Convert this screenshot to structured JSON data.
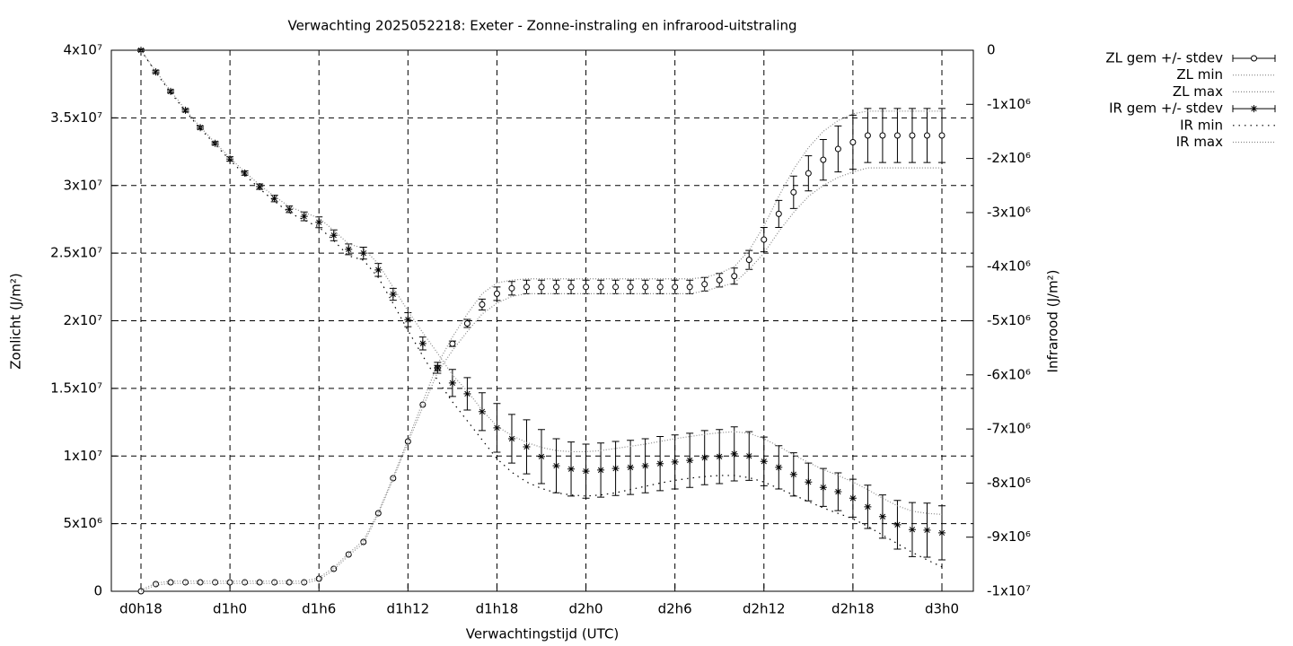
{
  "chart_data": {
    "type": "errorbar-line",
    "title": "Verwachting 2025052218: Exeter - Zonne-instraling en infrarood-uitstraling",
    "xlabel": "Verwachtingstijd (UTC)",
    "ylabel": "Zonlicht (J/m²)",
    "y2label": "Infrarood (J/m²)",
    "grid": true,
    "categories": [
      "d0h18",
      null,
      null,
      null,
      null,
      null,
      "d1h0",
      null,
      null,
      null,
      null,
      null,
      "d1h6",
      null,
      null,
      null,
      null,
      null,
      "d1h12",
      null,
      null,
      null,
      null,
      null,
      "d1h18",
      null,
      null,
      null,
      null,
      null,
      "d2h0",
      null,
      null,
      null,
      null,
      null,
      "d2h6",
      null,
      null,
      null,
      null,
      null,
      "d2h12",
      null,
      null,
      null,
      null,
      null,
      "d2h18",
      null,
      null,
      null,
      null,
      null,
      "d3h0"
    ],
    "ylim": [
      0,
      40000000.0
    ],
    "yticks": [
      0,
      {
        "value": 5000000.0,
        "label": "5x10⁶"
      },
      {
        "value": 10000000.0,
        "label": "1x10⁷"
      },
      {
        "value": 15000000.0,
        "label": "1.5x10⁷"
      },
      {
        "value": 20000000.0,
        "label": "2x10⁷"
      },
      {
        "value": 25000000.0,
        "label": "2.5x10⁷"
      },
      {
        "value": 30000000.0,
        "label": "3x10⁷"
      },
      {
        "value": 35000000.0,
        "label": "3.5x10⁷"
      },
      {
        "value": 40000000.0,
        "label": "4x10⁷"
      }
    ],
    "y2lim": [
      -10000000.0,
      0
    ],
    "y2ticks": [
      0,
      {
        "value": -1000000.0,
        "label": "-1x10⁶"
      },
      {
        "value": -2000000.0,
        "label": "-2x10⁶"
      },
      {
        "value": -3000000.0,
        "label": "-3x10⁶"
      },
      {
        "value": -4000000.0,
        "label": "-4x10⁶"
      },
      {
        "value": -5000000.0,
        "label": "-5x10⁶"
      },
      {
        "value": -6000000.0,
        "label": "-6x10⁶"
      },
      {
        "value": -7000000.0,
        "label": "-7x10⁶"
      },
      {
        "value": -8000000.0,
        "label": "-8x10⁶"
      },
      {
        "value": -9000000.0,
        "label": "-9x10⁶"
      },
      {
        "value": -10000000.0,
        "label": "-1x10⁷"
      }
    ],
    "series": [
      {
        "name": "ZL gem +/- stdev",
        "color": "#000000",
        "style": "errorbars",
        "marker": "circle",
        "values": [
          0,
          530000.0,
          660000.0,
          660000.0,
          660000.0,
          660000.0,
          660000.0,
          660000.0,
          660000.0,
          660000.0,
          660000.0,
          660000.0,
          930000.0,
          1660000.0,
          2720000.0,
          3650000.0,
          5770000.0,
          8360000.0,
          11080000.0,
          13800000.0,
          16500000.0,
          18300000.0,
          19800000.0,
          21200000.0,
          22000000.0,
          22400000.0,
          22500000.0,
          22500000.0,
          22500000.0,
          22500000.0,
          22500000.0,
          22500000.0,
          22500000.0,
          22500000.0,
          22500000.0,
          22500000.0,
          22500000.0,
          22500000.0,
          22700000.0,
          23000000.0,
          23300000.0,
          24500000.0,
          26000000.0,
          27900000.0,
          29500000.0,
          30900000.0,
          31900000.0,
          32700000.0,
          33200000.0,
          33700000.0,
          33700000.0,
          33700000.0,
          33700000.0,
          33700000.0,
          33700000.0
        ],
        "errors": [
          0,
          0,
          0,
          0,
          0,
          0,
          0,
          0,
          0,
          0,
          0,
          0,
          0,
          0,
          0,
          0,
          0,
          0,
          0,
          0,
          200000.0,
          200000.0,
          300000.0,
          400000.0,
          500000.0,
          500000.0,
          500000.0,
          500000.0,
          500000.0,
          500000.0,
          500000.0,
          500000.0,
          500000.0,
          500000.0,
          500000.0,
          500000.0,
          500000.0,
          500000.0,
          500000.0,
          500000.0,
          600000.0,
          700000.0,
          900000.0,
          1000000.0,
          1200000.0,
          1300000.0,
          1500000.0,
          1700000.0,
          2000000.0,
          2000000.0,
          2000000.0,
          2000000.0,
          2000000.0,
          2000000.0,
          2000000.0
        ]
      },
      {
        "name": "ZL min",
        "color": "#888888",
        "style": "dotted",
        "values": [
          0,
          450000.0,
          580000.0,
          580000.0,
          580000.0,
          580000.0,
          580000.0,
          580000.0,
          580000.0,
          580000.0,
          580000.0,
          580000.0,
          850000.0,
          1580000.0,
          2650000.0,
          3550000.0,
          5700000.0,
          8300000.0,
          11000000.0,
          13600000.0,
          16200000.0,
          17800000.0,
          19200000.0,
          20500000.0,
          21300000.0,
          21800000.0,
          22000000.0,
          22000000.0,
          22000000.0,
          22000000.0,
          22000000.0,
          22000000.0,
          22000000.0,
          22000000.0,
          22000000.0,
          22000000.0,
          22000000.0,
          22000000.0,
          22200000.0,
          22500000.0,
          22800000.0,
          23800000.0,
          25000000.0,
          26600000.0,
          28000000.0,
          29200000.0,
          30000000.0,
          30600000.0,
          31000000.0,
          31300000.0,
          31300000.0,
          31300000.0,
          31300000.0,
          31300000.0,
          31300000.0
        ]
      },
      {
        "name": "ZL max",
        "color": "#888888",
        "style": "dotted",
        "values": [
          100000.0,
          600000.0,
          750000.0,
          750000.0,
          750000.0,
          750000.0,
          750000.0,
          750000.0,
          750000.0,
          750000.0,
          750000.0,
          750000.0,
          1000000.0,
          1750000.0,
          2800000.0,
          3750000.0,
          5850000.0,
          8450000.0,
          11200000.0,
          14000000.0,
          16800000.0,
          18800000.0,
          20500000.0,
          22000000.0,
          22800000.0,
          23000000.0,
          23100000.0,
          23100000.0,
          23100000.0,
          23100000.0,
          23100000.0,
          23100000.0,
          23100000.0,
          23100000.0,
          23100000.0,
          23100000.0,
          23100000.0,
          23100000.0,
          23200000.0,
          23500000.0,
          24000000.0,
          25200000.0,
          27000000.0,
          29200000.0,
          31200000.0,
          32800000.0,
          34000000.0,
          34800000.0,
          35300000.0,
          35500000.0,
          35500000.0,
          35500000.0,
          35500000.0,
          35500000.0,
          35500000.0
        ]
      },
      {
        "name": "IR gem +/- stdev",
        "color": "#000000",
        "style": "errorbars",
        "marker": "star",
        "axis": "y2",
        "values": [
          0,
          -400000.0,
          -760000.0,
          -1110000.0,
          -1430000.0,
          -1720000.0,
          -2010000.0,
          -2270000.0,
          -2520000.0,
          -2740000.0,
          -2940000.0,
          -3070000.0,
          -3180000.0,
          -3420000.0,
          -3680000.0,
          -3750000.0,
          -4060000.0,
          -4510000.0,
          -4980000.0,
          -5420000.0,
          -5870000.0,
          -6150000.0,
          -6350000.0,
          -6680000.0,
          -6980000.0,
          -7180000.0,
          -7330000.0,
          -7510000.0,
          -7680000.0,
          -7740000.0,
          -7780000.0,
          -7760000.0,
          -7730000.0,
          -7710000.0,
          -7680000.0,
          -7640000.0,
          -7610000.0,
          -7580000.0,
          -7530000.0,
          -7510000.0,
          -7460000.0,
          -7500000.0,
          -7600000.0,
          -7710000.0,
          -7840000.0,
          -7980000.0,
          -8080000.0,
          -8160000.0,
          -8280000.0,
          -8440000.0,
          -8620000.0,
          -8770000.0,
          -8860000.0,
          -8870000.0,
          -8920000.0
        ],
        "errors": [
          20000.0,
          30000.0,
          30000.0,
          30000.0,
          30000.0,
          30000.0,
          40000.0,
          40000.0,
          50000.0,
          60000.0,
          60000.0,
          80000.0,
          100000.0,
          100000.0,
          100000.0,
          110000.0,
          120000.0,
          110000.0,
          130000.0,
          120000.0,
          100000.0,
          250000.0,
          300000.0,
          350000.0,
          450000.0,
          450000.0,
          500000.0,
          500000.0,
          500000.0,
          500000.0,
          500000.0,
          500000.0,
          500000.0,
          500000.0,
          500000.0,
          500000.0,
          500000.0,
          500000.0,
          500000.0,
          500000.0,
          500000.0,
          450000.0,
          450000.0,
          400000.0,
          400000.0,
          350000.0,
          350000.0,
          350000.0,
          350000.0,
          400000.0,
          400000.0,
          450000.0,
          500000.0,
          500000.0,
          500000.0
        ]
      },
      {
        "name": "IR min",
        "color": "#000000",
        "style": "sparse-dotted",
        "axis": "y2",
        "values": [
          0,
          -410000.0,
          -780000.0,
          -1130000.0,
          -1450000.0,
          -1740000.0,
          -2030000.0,
          -2300000.0,
          -2560000.0,
          -2790000.0,
          -3000000.0,
          -3140000.0,
          -3270000.0,
          -3520000.0,
          -3800000.0,
          -3880000.0,
          -4200000.0,
          -4680000.0,
          -5180000.0,
          -5650000.0,
          -6100000.0,
          -6500000.0,
          -6850000.0,
          -7200000.0,
          -7550000.0,
          -7800000.0,
          -7980000.0,
          -8100000.0,
          -8180000.0,
          -8220000.0,
          -8240000.0,
          -8220000.0,
          -8180000.0,
          -8120000.0,
          -8060000.0,
          -8000000.0,
          -7950000.0,
          -7910000.0,
          -7880000.0,
          -7860000.0,
          -7860000.0,
          -7900000.0,
          -7980000.0,
          -8100000.0,
          -8220000.0,
          -8340000.0,
          -8460000.0,
          -8560000.0,
          -8660000.0,
          -8800000.0,
          -8960000.0,
          -9120000.0,
          -9280000.0,
          -9420000.0,
          -9550000.0
        ]
      },
      {
        "name": "IR max",
        "color": "#888888",
        "style": "dotted",
        "axis": "y2",
        "values": [
          0,
          -390000.0,
          -750000.0,
          -1100000.0,
          -1420000.0,
          -1710000.0,
          -1990000.0,
          -2250000.0,
          -2490000.0,
          -2700000.0,
          -2890000.0,
          -3000000.0,
          -3100000.0,
          -3330000.0,
          -3580000.0,
          -3660000.0,
          -3950000.0,
          -4380000.0,
          -4820000.0,
          -5220000.0,
          -5600000.0,
          -6000000.0,
          -6300000.0,
          -6650000.0,
          -6950000.0,
          -7120000.0,
          -7250000.0,
          -7340000.0,
          -7400000.0,
          -7420000.0,
          -7420000.0,
          -7400000.0,
          -7360000.0,
          -7320000.0,
          -7280000.0,
          -7230000.0,
          -7180000.0,
          -7140000.0,
          -7100000.0,
          -7070000.0,
          -7050000.0,
          -7080000.0,
          -7180000.0,
          -7320000.0,
          -7480000.0,
          -7620000.0,
          -7750000.0,
          -7860000.0,
          -7980000.0,
          -8120000.0,
          -8280000.0,
          -8420000.0,
          -8520000.0,
          -8560000.0,
          -8580000.0
        ]
      }
    ]
  }
}
